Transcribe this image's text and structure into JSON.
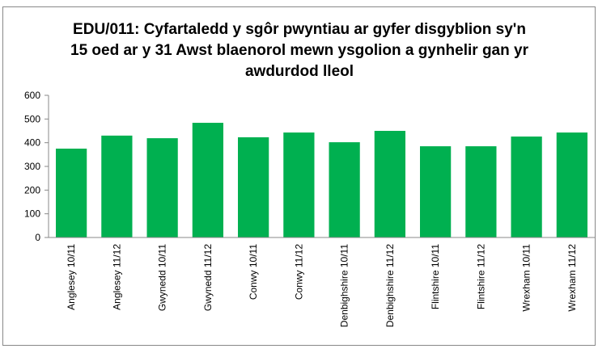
{
  "chart_data": {
    "type": "bar",
    "title": [
      "EDU/011: Cyfartaledd y sgôr pwyntiau ar gyfer disgyblion sy'n",
      "15 oed ar y 31 Awst blaenorol mewn ysgolion a gynhelir gan yr",
      "awdurdod lleol"
    ],
    "categories": [
      "Anglesey 10/11",
      "Anglesey 11/12",
      "Gwynedd 10/11",
      "Gwynedd 11/12",
      "Conwy 10/11",
      "Conwy 11/12",
      "Denbighshire 10/11",
      "Denbighshire 11/12",
      "Flintshire 10/11",
      "Flintshire 11/12",
      "Wrexham 10/11",
      "Wrexham 11/12"
    ],
    "values": [
      375,
      430,
      419,
      484,
      423,
      443,
      402,
      450,
      385,
      385,
      426,
      443
    ],
    "color": "#00b050",
    "ylim": [
      0,
      600
    ],
    "yticks": [
      0,
      100,
      200,
      300,
      400,
      500,
      600
    ],
    "grid": false
  }
}
